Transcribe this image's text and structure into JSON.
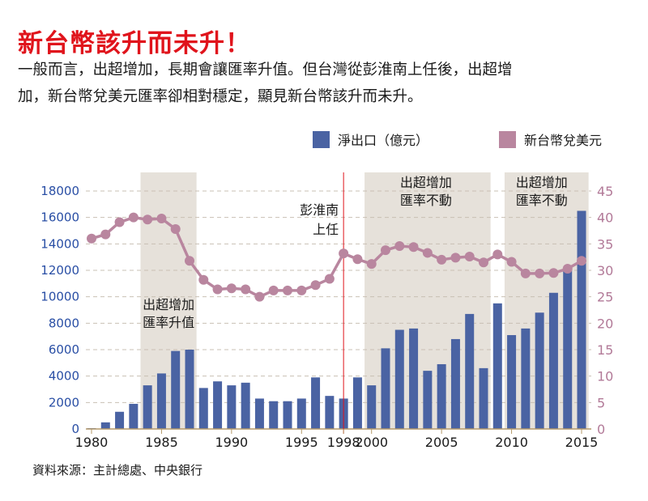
{
  "header": {
    "title": "新台幣該升而未升！",
    "description_line1": "一般而言，出超增加，長期會讓匯率升值。但台灣從彭淮南上任後，出超增",
    "description_line2": "加，新台幣兌美元匯率卻相對穩定，顯見新台幣該升而未升。"
  },
  "legend": {
    "bar_label": "淨出口（億元）",
    "line_label": "新台幣兌美元",
    "bar_color": "#4a63a3",
    "line_color": "#b9869f"
  },
  "source": "資料來源：主計總處、中央銀行",
  "colors": {
    "shade": "#e6e1da",
    "marker_line": "#e0141c",
    "grid": "#c9c0b4",
    "axis": "#b59a6a"
  },
  "chart_data": {
    "type": "bar+line",
    "title": "新台幣該升而未升！",
    "x": [
      1980,
      1981,
      1982,
      1983,
      1984,
      1985,
      1986,
      1987,
      1988,
      1989,
      1990,
      1991,
      1992,
      1993,
      1994,
      1995,
      1996,
      1997,
      1998,
      1999,
      2000,
      2001,
      2002,
      2003,
      2004,
      2005,
      2006,
      2007,
      2008,
      2009,
      2010,
      2011,
      2012,
      2013,
      2014,
      2015
    ],
    "x_ticks": [
      1980,
      1985,
      1990,
      1995,
      1998,
      2000,
      2005,
      2010,
      2015
    ],
    "x_tick_labels": [
      "1980",
      "1985",
      "1990",
      "1995",
      "1998",
      "2000",
      "2005",
      "2010",
      "2015"
    ],
    "highlight_tick": "1998",
    "xlim": [
      1980,
      2015
    ],
    "series": [
      {
        "name": "淨出口（億元）",
        "type": "bar",
        "axis": "left",
        "values": [
          60,
          500,
          1300,
          1900,
          3300,
          4200,
          5900,
          6000,
          3100,
          3600,
          3300,
          3500,
          2300,
          2100,
          2100,
          2300,
          3900,
          2500,
          2300,
          3900,
          3300,
          6100,
          7500,
          7600,
          4400,
          4900,
          6800,
          8700,
          4600,
          9500,
          7100,
          7600,
          8800,
          10300,
          12100,
          16500
        ]
      },
      {
        "name": "新台幣兌美元",
        "type": "line",
        "axis": "right",
        "values": [
          36.0,
          36.8,
          39.1,
          40.0,
          39.6,
          39.8,
          37.8,
          31.8,
          28.2,
          26.4,
          26.6,
          26.4,
          25.0,
          26.2,
          26.2,
          26.2,
          27.2,
          28.4,
          33.2,
          32.1,
          31.2,
          33.8,
          34.6,
          34.4,
          33.3,
          32.0,
          32.4,
          32.6,
          31.5,
          33.0,
          31.6,
          29.4,
          29.4,
          29.5,
          30.3,
          31.8
        ]
      }
    ],
    "ylim_left": [
      0,
      18000
    ],
    "yticks_left": [
      0,
      2000,
      4000,
      6000,
      8000,
      10000,
      12000,
      14000,
      16000,
      18000
    ],
    "ylim_right": [
      0,
      45
    ],
    "yticks_right": [
      0,
      5,
      10,
      15,
      20,
      25,
      30,
      35,
      40,
      45
    ],
    "grid": true,
    "legend_position": "top-right",
    "shaded_periods": [
      {
        "from": 1983.5,
        "to": 1987.5,
        "label_line1": "出超增加",
        "label_line2": "匯率升值"
      },
      {
        "from": 1999.5,
        "to": 2008.5,
        "label_line1": "出超增加",
        "label_line2": "匯率不動"
      },
      {
        "from": 2009.5,
        "to": 2015.5,
        "label_line1": "出超增加",
        "label_line2": "匯率不動"
      }
    ],
    "vertical_marker": {
      "x": 1998,
      "label_line1": "彭淮南",
      "label_line2": "上任"
    }
  }
}
